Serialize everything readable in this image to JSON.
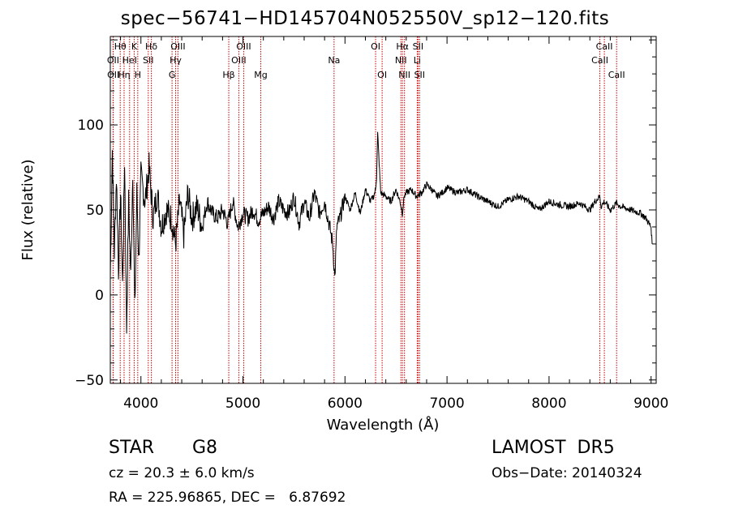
{
  "chart_data": {
    "type": "line",
    "title": "spec−56741−HD145704N052550V_sp12−120.fits",
    "xlabel": "Wavelength (Å)",
    "ylabel": "Flux (relative)",
    "xlim": [
      3700,
      9050
    ],
    "ylim": [
      -52,
      152
    ],
    "xticks": [
      4000,
      5000,
      6000,
      7000,
      8000,
      9000
    ],
    "yticks": [
      -50,
      0,
      50,
      100
    ],
    "tick_labels_y": [
      "−50",
      "0",
      "50",
      "100"
    ],
    "series": [
      {
        "x": [
          3700,
          3720,
          3740,
          3760,
          3780,
          3800,
          3820,
          3840,
          3860,
          3880,
          3900,
          3920,
          3940,
          3960,
          3980,
          4000,
          4040,
          4080,
          4120,
          4160,
          4200,
          4250,
          4300,
          4340,
          4380,
          4420,
          4460,
          4500,
          4550,
          4600,
          4650,
          4700,
          4750,
          4800,
          4850,
          4900,
          4950,
          5000,
          5050,
          5100,
          5150,
          5200,
          5250,
          5300,
          5350,
          5400,
          5450,
          5500,
          5550,
          5600,
          5650,
          5700,
          5750,
          5800,
          5850,
          5880,
          5900,
          5920,
          5950,
          6000,
          6050,
          6100,
          6150,
          6200,
          6250,
          6280,
          6300,
          6310,
          6320,
          6350,
          6400,
          6450,
          6500,
          6540,
          6563,
          6580,
          6600,
          6650,
          6700,
          6750,
          6800,
          6850,
          6900,
          6950,
          7000,
          7100,
          7200,
          7300,
          7400,
          7500,
          7600,
          7700,
          7800,
          7900,
          8000,
          8100,
          8200,
          8300,
          8400,
          8450,
          8498,
          8510,
          8542,
          8600,
          8662,
          8700,
          8800,
          8900,
          8950,
          9000,
          9010
        ],
        "y": [
          10,
          85,
          25,
          70,
          15,
          60,
          5,
          80,
          -20,
          55,
          10,
          75,
          -10,
          60,
          20,
          70,
          55,
          75,
          45,
          60,
          40,
          50,
          45,
          30,
          55,
          35,
          60,
          45,
          52,
          40,
          55,
          48,
          45,
          50,
          42,
          55,
          40,
          48,
          45,
          50,
          44,
          48,
          52,
          45,
          55,
          50,
          48,
          58,
          42,
          55,
          45,
          60,
          48,
          55,
          40,
          30,
          10,
          40,
          45,
          58,
          50,
          60,
          48,
          62,
          55,
          58,
          62,
          70,
          95,
          60,
          58,
          55,
          62,
          55,
          48,
          58,
          60,
          62,
          58,
          60,
          65,
          62,
          58,
          60,
          63,
          60,
          62,
          58,
          55,
          52,
          56,
          58,
          55,
          50,
          55,
          53,
          52,
          54,
          50,
          55,
          58,
          52,
          55,
          50,
          54,
          52,
          50,
          48,
          45,
          40,
          30
        ]
      }
    ],
    "spectral_lines": [
      {
        "label": "Hθ",
        "x": 3797,
        "row": 0
      },
      {
        "label": "K",
        "x": 3934,
        "row": 0
      },
      {
        "label": "Hδ",
        "x": 4102,
        "row": 0
      },
      {
        "label": "OIII",
        "x": 4363,
        "row": 0
      },
      {
        "label": "OIII",
        "x": 5007,
        "row": 0
      },
      {
        "label": "OI",
        "x": 6300,
        "row": 0
      },
      {
        "label": "Hα",
        "x": 6563,
        "row": 0
      },
      {
        "label": "SII",
        "x": 6716,
        "row": 0
      },
      {
        "label": "CaII",
        "x": 8542,
        "row": 0
      },
      {
        "label": "OII",
        "x": 3727,
        "row": 1
      },
      {
        "label": "HeI",
        "x": 3889,
        "row": 1
      },
      {
        "label": "SII",
        "x": 4072,
        "row": 1
      },
      {
        "label": "Hγ",
        "x": 4340,
        "row": 1
      },
      {
        "label": "OIII",
        "x": 4959,
        "row": 1
      },
      {
        "label": "Na",
        "x": 5893,
        "row": 1
      },
      {
        "label": "NII",
        "x": 6548,
        "row": 1
      },
      {
        "label": "Li",
        "x": 6708,
        "row": 1
      },
      {
        "label": "CaII",
        "x": 8498,
        "row": 1
      },
      {
        "label": "OII",
        "x": 3729,
        "row": 2
      },
      {
        "label": "Hη",
        "x": 3835,
        "row": 2
      },
      {
        "label": "H",
        "x": 3969,
        "row": 2
      },
      {
        "label": "G",
        "x": 4305,
        "row": 2
      },
      {
        "label": "Hβ",
        "x": 4861,
        "row": 2
      },
      {
        "label": "Mg",
        "x": 5175,
        "row": 2
      },
      {
        "label": "OI",
        "x": 6364,
        "row": 2
      },
      {
        "label": "NII",
        "x": 6583,
        "row": 2
      },
      {
        "label": "SII",
        "x": 6731,
        "row": 2
      },
      {
        "label": "CaII",
        "x": 8662,
        "row": 2
      }
    ],
    "line_color": "#000000",
    "marker_color": "#cc0000"
  },
  "footer": {
    "object_class": "STAR",
    "subclass": "G8",
    "redshift": "cz = 20.3 ± 6.0 km/s",
    "coords": "RA = 225.96865, DEC =   6.87692",
    "survey": "LAMOST  DR5",
    "obs_date": "Obs−Date: 20140324"
  }
}
